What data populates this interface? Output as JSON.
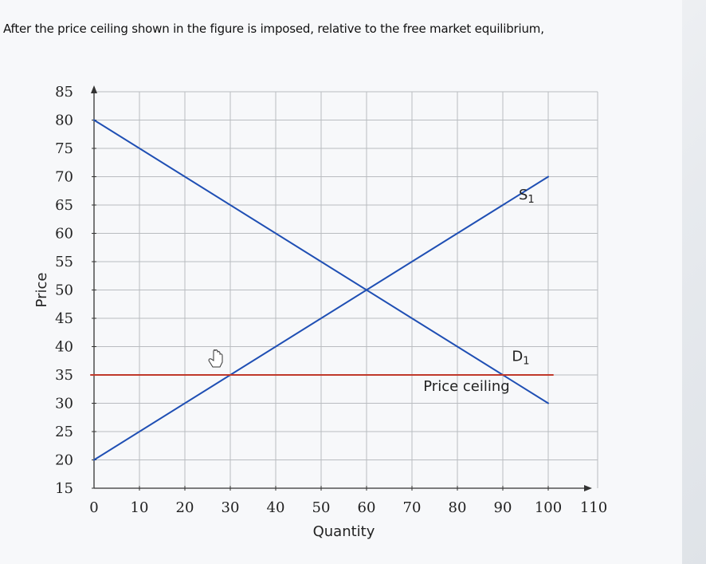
{
  "question": {
    "text": "After the price ceiling shown in the figure is imposed, relative to the free market equilibrium,"
  },
  "chart_data": {
    "type": "line",
    "title": "",
    "xlabel": "Quantity",
    "ylabel": "Price",
    "xlim": [
      0,
      110
    ],
    "ylim": [
      15,
      85
    ],
    "x_ticks": [
      0,
      10,
      20,
      30,
      40,
      50,
      60,
      70,
      80,
      90,
      100,
      110
    ],
    "y_ticks": [
      15,
      20,
      25,
      30,
      35,
      40,
      45,
      50,
      55,
      60,
      65,
      70,
      75,
      80,
      85
    ],
    "grid": true,
    "series": [
      {
        "name": "S1",
        "color": "#1f4fb4",
        "x": [
          0,
          100
        ],
        "y": [
          20,
          70
        ]
      },
      {
        "name": "D1",
        "color": "#1f4fb4",
        "x": [
          0,
          100
        ],
        "y": [
          80,
          30
        ]
      },
      {
        "name": "Price ceiling",
        "color": "#c0392b",
        "x": [
          0,
          100
        ],
        "y": [
          35,
          35
        ]
      }
    ],
    "annotations": [
      {
        "text": "S",
        "sub": "1",
        "series": "S1"
      },
      {
        "text": "D",
        "sub": "1",
        "series": "D1"
      },
      {
        "text": "Price ceiling",
        "series": "Price ceiling"
      }
    ]
  }
}
